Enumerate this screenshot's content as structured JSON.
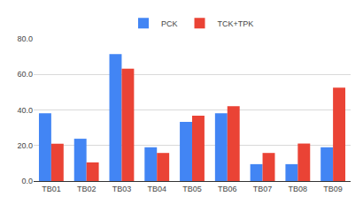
{
  "chart_data": {
    "type": "bar",
    "categories": [
      "TB01",
      "TB02",
      "TB03",
      "TB04",
      "TB05",
      "TB06",
      "TB07",
      "TB08",
      "TB09"
    ],
    "series": [
      {
        "name": "PCK",
        "color": "#4285f4",
        "values": [
          38.1,
          23.8,
          71.4,
          19.0,
          33.3,
          38.1,
          9.5,
          9.5,
          19.0
        ]
      },
      {
        "name": "TCK+TPK",
        "color": "#ea4335",
        "values": [
          21.0,
          10.5,
          63.2,
          15.8,
          36.8,
          42.1,
          15.8,
          21.1,
          52.6
        ]
      }
    ],
    "ylim": [
      0,
      80
    ],
    "yticks": [
      {
        "value": 0,
        "label": "0.0"
      },
      {
        "value": 20,
        "label": "20.0"
      },
      {
        "value": 40,
        "label": "40.0"
      },
      {
        "value": 60,
        "label": "60.0"
      },
      {
        "value": 80,
        "label": "80.0"
      }
    ],
    "grid": true,
    "legend": "top"
  }
}
